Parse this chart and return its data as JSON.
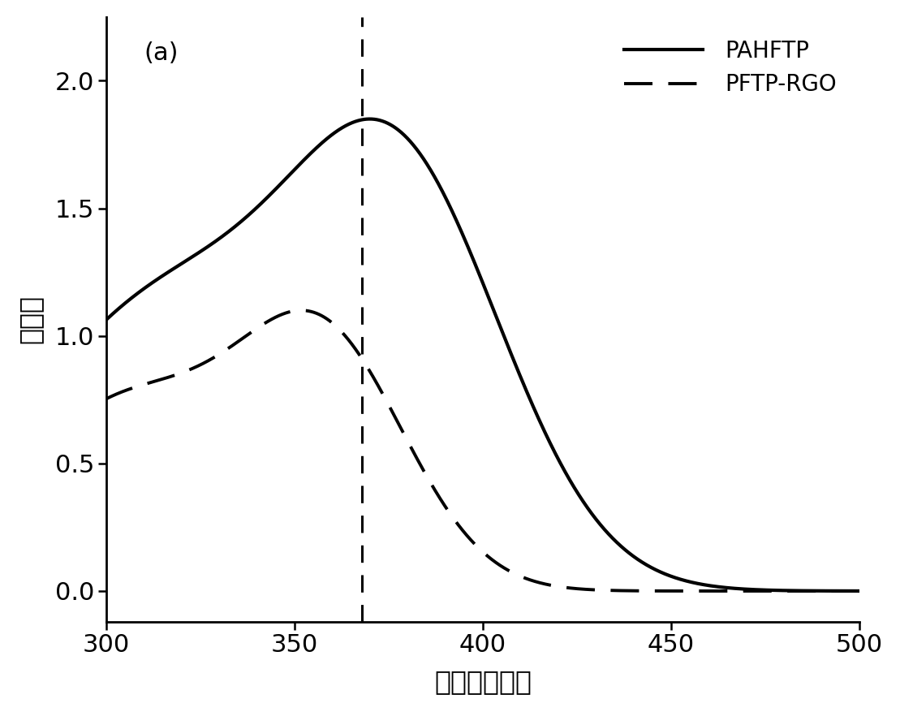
{
  "title_label": "(a)",
  "xlabel": "波长（纳米）",
  "ylabel": "吸光度",
  "xlim": [
    300,
    500
  ],
  "ylim": [
    -0.12,
    2.25
  ],
  "xticks": [
    300,
    350,
    400,
    450,
    500
  ],
  "yticks": [
    0.0,
    0.5,
    1.0,
    1.5,
    2.0
  ],
  "vline_x": 368,
  "legend": [
    "PAHFTP",
    "PFTP-RGO"
  ],
  "background_color": "#ffffff",
  "line_color": "#000000",
  "linewidth_solid": 3.0,
  "linewidth_dashed": 2.8,
  "title_fontsize": 22,
  "label_fontsize": 24,
  "tick_fontsize": 22,
  "legend_fontsize": 20
}
